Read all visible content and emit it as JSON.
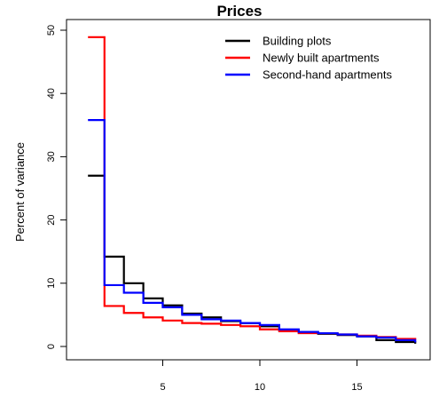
{
  "chart_data": {
    "type": "line",
    "step": true,
    "title": "Prices",
    "xlabel": "",
    "ylabel": "Percent of variance",
    "xlim": [
      1,
      18
    ],
    "ylim": [
      0,
      50
    ],
    "x_ticks": [
      5,
      10,
      15
    ],
    "y_ticks": [
      0,
      10,
      20,
      30,
      40,
      50
    ],
    "grid": false,
    "legend_position": "top-right",
    "x": [
      1,
      2,
      3,
      4,
      5,
      6,
      7,
      8,
      9,
      10,
      11,
      12,
      13,
      14,
      15,
      16,
      17,
      18
    ],
    "series": [
      {
        "name": "Building plots",
        "color": "#000000",
        "values": [
          27.0,
          14.2,
          10.0,
          7.6,
          6.5,
          5.2,
          4.6,
          4.0,
          3.7,
          3.2,
          2.5,
          2.2,
          2.0,
          1.8,
          1.6,
          1.0,
          0.7,
          0.6
        ]
      },
      {
        "name": "Newly built apartments",
        "color": "#ff0000",
        "values": [
          48.9,
          6.4,
          5.3,
          4.6,
          4.1,
          3.7,
          3.6,
          3.4,
          3.2,
          2.7,
          2.4,
          2.1,
          2.1,
          1.9,
          1.7,
          1.5,
          1.2,
          1.2
        ]
      },
      {
        "name": "Second-hand apartments",
        "color": "#0000ff",
        "values": [
          35.8,
          9.7,
          8.5,
          6.9,
          6.2,
          5.0,
          4.3,
          4.1,
          3.7,
          3.4,
          2.7,
          2.3,
          2.1,
          1.9,
          1.6,
          1.4,
          1.0,
          0.8
        ]
      }
    ]
  }
}
